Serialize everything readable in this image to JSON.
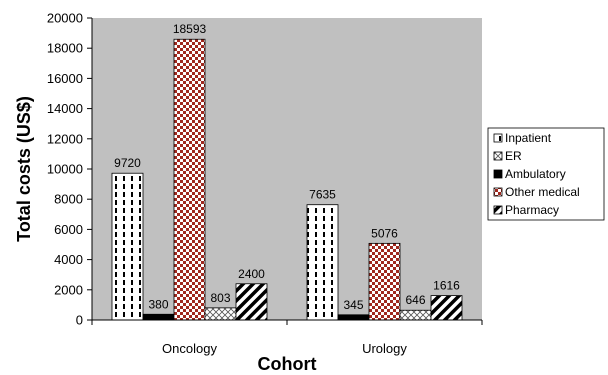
{
  "chart_data": {
    "type": "bar",
    "categories": [
      "Oncology",
      "Urology"
    ],
    "series": [
      {
        "name": "Inpatient",
        "values": [
          9720,
          7635
        ],
        "pattern": "dashed-vertical"
      },
      {
        "name": "Ambulatory",
        "values": [
          380,
          345
        ],
        "pattern": "solid-black"
      },
      {
        "name": "Other medical",
        "values": [
          18593,
          5076
        ],
        "pattern": "checker-red"
      },
      {
        "name": "ER",
        "values": [
          803,
          646
        ],
        "pattern": "crosshatch"
      },
      {
        "name": "Pharmacy",
        "values": [
          2400,
          1616
        ],
        "pattern": "diagonal"
      }
    ],
    "legend_order": [
      "Inpatient",
      "ER",
      "Ambulatory",
      "Other medical",
      "Pharmacy"
    ],
    "xlabel": "Cohort",
    "ylabel": "Total costs (US$)",
    "ylim": [
      0,
      20000
    ],
    "yticks": [
      0,
      2000,
      4000,
      6000,
      8000,
      10000,
      12000,
      14000,
      16000,
      18000,
      20000
    ],
    "grid": false,
    "plot_background": "#c0c0c0",
    "other_medical_color": "#a0281e",
    "legend_position": "right"
  }
}
